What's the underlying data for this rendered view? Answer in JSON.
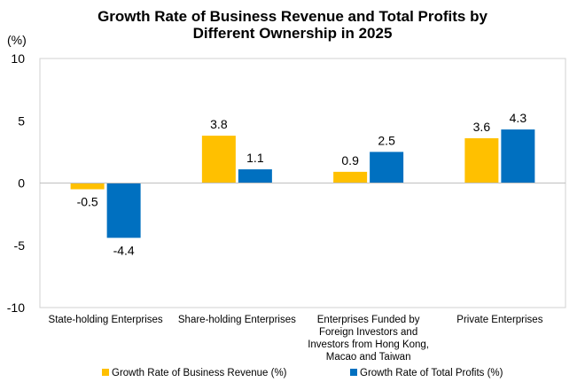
{
  "chart_data": {
    "type": "bar",
    "title_lines": [
      "Growth Rate of Business Revenue and Total Profits by",
      "Different Ownership in 2025"
    ],
    "ylabel": "(%)",
    "ylim": [
      -10,
      10
    ],
    "yticks": [
      10,
      5,
      0,
      -5,
      -10
    ],
    "categories": [
      [
        "State-holding Enterprises"
      ],
      [
        "Share-holding Enterprises"
      ],
      [
        "Enterprises Funded by",
        "Foreign Investors and",
        "Investors from Hong Kong,",
        "Macao and Taiwan"
      ],
      [
        "Private Enterprises"
      ]
    ],
    "series": [
      {
        "name": "Growth Rate of Business Revenue (%)",
        "color": "#FFC000",
        "values": [
          -0.5,
          3.8,
          0.9,
          3.6
        ]
      },
      {
        "name": "Growth Rate of Total Profits (%)",
        "color": "#0070C0",
        "values": [
          -4.4,
          1.1,
          2.5,
          4.3
        ]
      }
    ],
    "legend_position": "bottom",
    "grid": false
  }
}
